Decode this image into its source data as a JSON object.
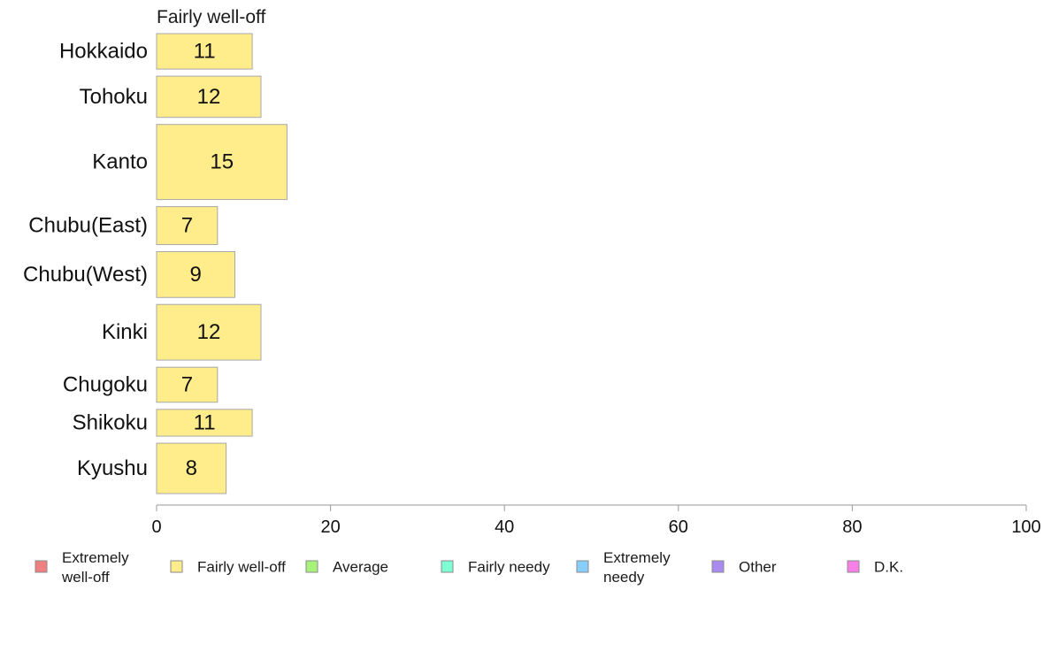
{
  "chart_data": {
    "type": "bar",
    "orientation": "horizontal",
    "title": "Fairly well-off",
    "categories": [
      "Hokkaido",
      "Tohoku",
      "Kanto",
      "Chubu(East)",
      "Chubu(West)",
      "Kinki",
      "Chugoku",
      "Shikoku",
      "Kyushu"
    ],
    "values": [
      11,
      12,
      15,
      7,
      9,
      12,
      7,
      11,
      8
    ],
    "series": [
      {
        "name": "Fairly well-off",
        "values": [
          11,
          12,
          15,
          7,
          9,
          12,
          7,
          11,
          8
        ],
        "color": "#FFEC8B"
      }
    ],
    "xlim": [
      0,
      100
    ],
    "xticks": [
      0,
      20,
      40,
      60,
      80,
      100
    ],
    "xlabel": "",
    "ylabel": "",
    "grid": false,
    "legend": {
      "placement": "bottom",
      "entries": [
        {
          "label": "Extremely well-off",
          "lines": [
            "Extremely",
            "well-off"
          ],
          "color": "#F08080"
        },
        {
          "label": "Fairly well-off",
          "lines": [
            "Fairly well-off"
          ],
          "color": "#FFEC8B"
        },
        {
          "label": "Average",
          "lines": [
            "Average"
          ],
          "color": "#A6F27A"
        },
        {
          "label": "Fairly needy",
          "lines": [
            "Fairly needy"
          ],
          "color": "#7FFFD4"
        },
        {
          "label": "Extremely needy",
          "lines": [
            "Extremely",
            "needy"
          ],
          "color": "#87CEFA"
        },
        {
          "label": "Other",
          "lines": [
            "Other"
          ],
          "color": "#A98BF0"
        },
        {
          "label": "D.K.",
          "lines": [
            "D.K."
          ],
          "color": "#F77FE8"
        }
      ]
    }
  }
}
